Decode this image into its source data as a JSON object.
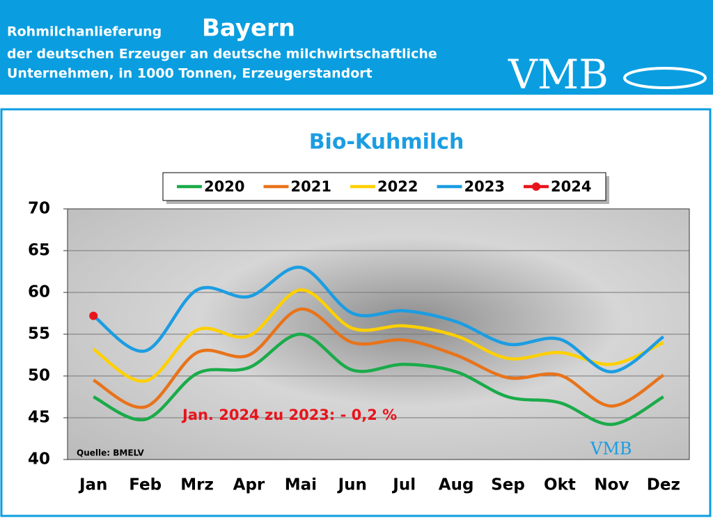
{
  "header": {
    "title_prefix": "Rohmilchanlieferung",
    "title_region": "Bayern",
    "subtitle_line1": "der deutschen Erzeuger an deutsche milchwirtschaftliche",
    "subtitle_line2": "Unternehmen, in 1000 Tonnen, Erzeugerstandort",
    "logo": "VMB"
  },
  "chart_data": {
    "type": "line",
    "title": "Bio-Kuhmilch",
    "annotation": "Jan. 2024 zu 2023: - 0,2 %",
    "source": "Quelle: BMELV",
    "categories": [
      "Jan",
      "Feb",
      "Mrz",
      "Apr",
      "Mai",
      "Jun",
      "Jul",
      "Aug",
      "Sep",
      "Okt",
      "Nov",
      "Dez"
    ],
    "series": [
      {
        "name": "2020",
        "color": "#1aab4a",
        "values": [
          47.5,
          44.8,
          50.3,
          51,
          55,
          50.7,
          51.4,
          50.5,
          47.5,
          46.8,
          44.2,
          47.5
        ]
      },
      {
        "name": "2021",
        "color": "#e8731a",
        "values": [
          49.5,
          46.3,
          52.8,
          52.5,
          58,
          54,
          54.3,
          52.5,
          49.8,
          50.1,
          46.4,
          50.1
        ]
      },
      {
        "name": "2022",
        "color": "#ffd000",
        "values": [
          53.2,
          49.4,
          55.5,
          54.8,
          60.3,
          55.7,
          56,
          54.8,
          52.1,
          52.8,
          51.4,
          54
        ]
      },
      {
        "name": "2023",
        "color": "#1b9de2",
        "values": [
          57.2,
          53,
          60.3,
          59.5,
          63,
          57.5,
          57.8,
          56.5,
          53.8,
          54.4,
          50.5,
          54.7
        ]
      },
      {
        "name": "2024",
        "color": "#e8141c",
        "values": [
          57.2,
          null,
          null,
          null,
          null,
          null,
          null,
          null,
          null,
          null,
          null,
          null
        ]
      }
    ],
    "ylim": [
      40,
      70
    ],
    "yticks": [
      40,
      45,
      50,
      55,
      60,
      65,
      70
    ],
    "grid": true
  }
}
